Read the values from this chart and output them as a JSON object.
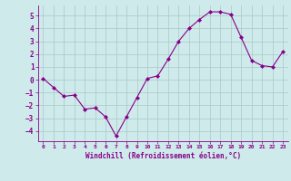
{
  "x": [
    0,
    1,
    2,
    3,
    4,
    5,
    6,
    7,
    8,
    9,
    10,
    11,
    12,
    13,
    14,
    15,
    16,
    17,
    18,
    19,
    20,
    21,
    22,
    23
  ],
  "y": [
    0.1,
    -0.6,
    -1.3,
    -1.2,
    -2.3,
    -2.2,
    -2.9,
    -4.4,
    -2.9,
    -1.4,
    0.1,
    0.3,
    1.6,
    3.0,
    4.0,
    4.7,
    5.3,
    5.3,
    5.1,
    3.3,
    1.5,
    1.1,
    1.0,
    2.2
  ],
  "line_color": "#880088",
  "marker": "D",
  "marker_size": 2,
  "xlabel": "Windchill (Refroidissement éolien,°C)",
  "xlim": [
    -0.5,
    23.5
  ],
  "ylim": [
    -4.8,
    5.8
  ],
  "yticks": [
    -4,
    -3,
    -2,
    -1,
    0,
    1,
    2,
    3,
    4,
    5
  ],
  "xticks": [
    0,
    1,
    2,
    3,
    4,
    5,
    6,
    7,
    8,
    9,
    10,
    11,
    12,
    13,
    14,
    15,
    16,
    17,
    18,
    19,
    20,
    21,
    22,
    23
  ],
  "background_color": "#ceeaea",
  "grid_color": "#aac8c8",
  "font_color": "#880088",
  "font_family": "monospace"
}
